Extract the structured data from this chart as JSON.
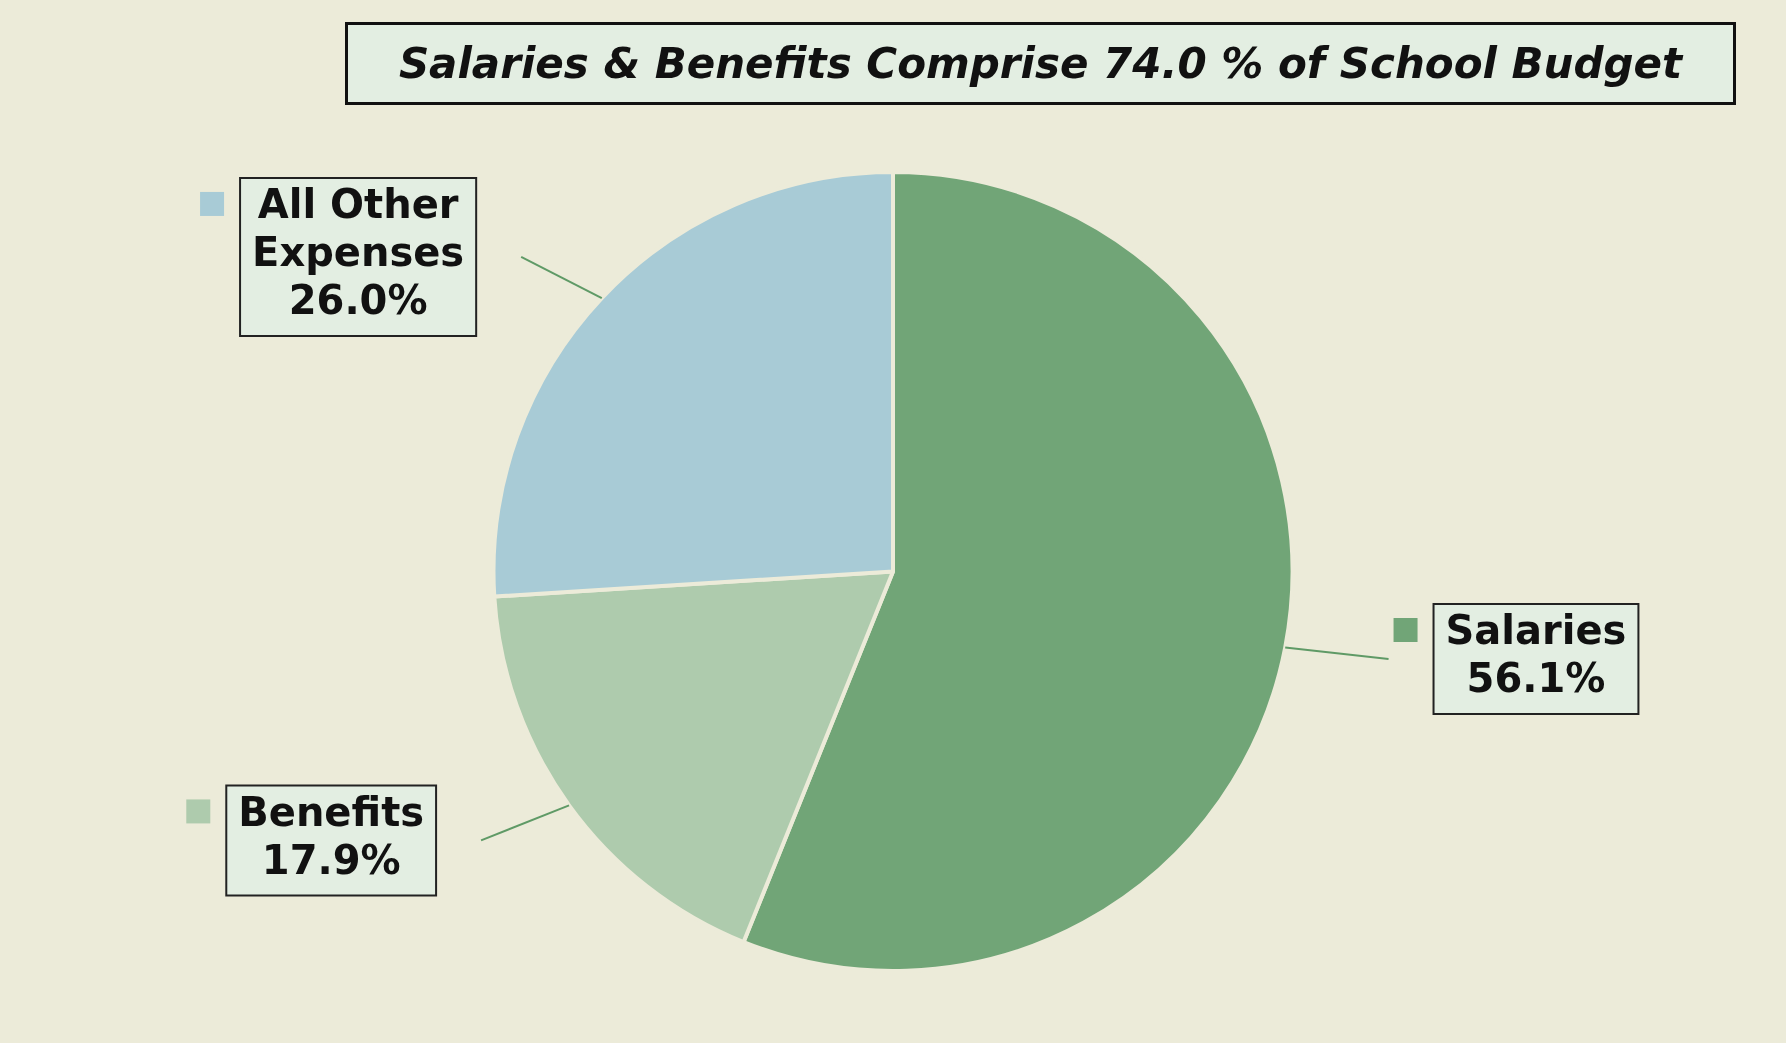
{
  "chart_data": {
    "type": "pie",
    "title": "Salaries & Benefits Comprise 74.0 % of School Budget",
    "categories": [
      "Salaries",
      "Benefits",
      "All Other Expenses"
    ],
    "values": [
      56.1,
      17.9,
      26.0
    ],
    "colors": [
      "#71a577",
      "#aecbad",
      "#a8cbd6"
    ],
    "value_labels": [
      "56.1%",
      "17.9%",
      "26.0%"
    ],
    "legend": true
  }
}
